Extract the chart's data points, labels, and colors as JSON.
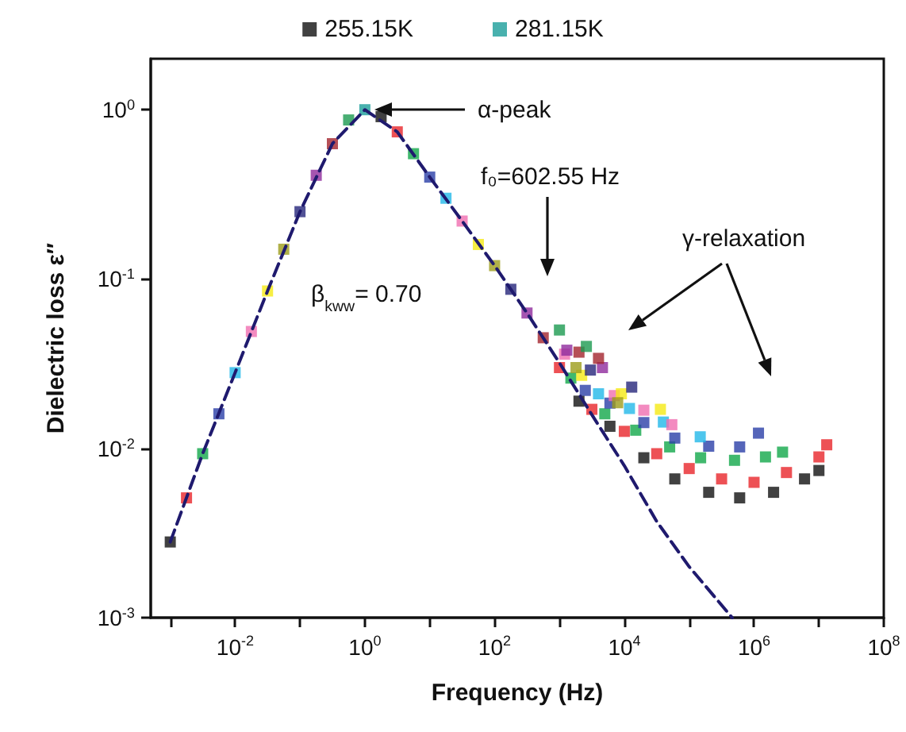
{
  "chart_data": {
    "type": "scatter",
    "xlabel": "Frequency (Hz)",
    "ylabel": "Dielectric loss ε″",
    "log": "xy",
    "legend": "top",
    "marker": "square",
    "xlim": [
      0.0005,
      100000000
    ],
    "xticks": [
      {
        "value": 0.001,
        "label": null
      },
      {
        "value": 0.01,
        "label": "10$^{-2}$"
      },
      {
        "value": 0.1,
        "label": null
      },
      {
        "value": 1,
        "label": "10$^{0}$"
      },
      {
        "value": 10,
        "label": null
      },
      {
        "value": 100,
        "label": "10$^{2}$"
      },
      {
        "value": 1000,
        "label": null
      },
      {
        "value": 10000,
        "label": "10$^{4}$"
      },
      {
        "value": 100000,
        "label": null
      },
      {
        "value": 1000000,
        "label": "10$^{6}$"
      },
      {
        "value": 10000000,
        "label": null
      },
      {
        "value": 100000000,
        "label": "10$^{8}$"
      }
    ],
    "ylim": [
      0.001,
      2
    ],
    "yticks": [
      {
        "value": 0.001,
        "label": "10$^{-3}$"
      },
      {
        "value": 0.01,
        "label": "10$^{-2}$"
      },
      {
        "value": 0.1,
        "label": "10$^{-1}$"
      },
      {
        "value": 1,
        "label": "10$^{0}$"
      }
    ],
    "annotations": [
      "α-peak",
      "f₀=602.55 Hz",
      "β$_{kww}$= 0.70",
      "γ-relaxation"
    ],
    "series": [
      {
        "name": "255.15K",
        "color": "#111111",
        "x": [
          0.001,
          1.78,
          2000,
          6000,
          20000,
          60000,
          200000,
          600000,
          2000000,
          6000000,
          10000000
        ],
        "values": [
          0.0028,
          0.91,
          0.019,
          0.0135,
          0.0088,
          0.0066,
          0.0055,
          0.0051,
          0.0055,
          0.0066,
          0.0074
        ]
      },
      {
        "color": "#e8262b",
        "x": [
          0.00178,
          3.16,
          1000,
          3160,
          10000,
          31600,
          100000,
          316000,
          1000000,
          3160000,
          10000000,
          13200000
        ],
        "values": [
          0.0051,
          0.74,
          0.03,
          0.017,
          0.0126,
          0.0093,
          0.0076,
          0.0066,
          0.0063,
          0.0072,
          0.0089,
          0.0105
        ]
      },
      {
        "color": "#11a84a",
        "x": [
          0.00316,
          5.62,
          1500,
          5000,
          15000,
          50000,
          150000,
          500000,
          1500000,
          2750000
        ],
        "values": [
          0.0093,
          0.55,
          0.026,
          0.016,
          0.0128,
          0.0102,
          0.0088,
          0.0085,
          0.0089,
          0.0095
        ]
      },
      {
        "color": "#2b3fa8",
        "x": [
          0.00562,
          10,
          2500,
          6000,
          20000,
          60000,
          200000,
          600000,
          1170000
        ],
        "values": [
          0.016,
          0.4,
          0.022,
          0.0185,
          0.0142,
          0.0115,
          0.0103,
          0.0102,
          0.0123
        ]
      },
      {
        "color": "#22b8e8",
        "x": [
          0.01,
          17.8,
          4000,
          12000,
          40000,
          148000
        ],
        "values": [
          0.028,
          0.3,
          0.021,
          0.0172,
          0.0143,
          0.0117
        ]
      },
      {
        "color": "#f06eb0",
        "x": [
          0.0178,
          31.6,
          1200,
          7000,
          20000,
          54000
        ],
        "values": [
          0.049,
          0.22,
          0.036,
          0.0205,
          0.0168,
          0.0138
        ]
      },
      {
        "color": "#f5ea14",
        "x": [
          0.0316,
          56.2,
          2200,
          9000,
          36000
        ],
        "values": [
          0.085,
          0.16,
          0.027,
          0.021,
          0.017
        ]
      },
      {
        "color": "#9c9c1c",
        "x": [
          0.0562,
          100,
          1800,
          7900
        ],
        "values": [
          0.15,
          0.12,
          0.03,
          0.0186
        ]
      },
      {
        "color": "#26257a",
        "x": [
          0.1,
          178,
          3000,
          13000
        ],
        "values": [
          0.25,
          0.087,
          0.029,
          0.023
        ]
      },
      {
        "color": "#8e2a9c",
        "x": [
          0.178,
          316,
          1300,
          4600
        ],
        "values": [
          0.41,
          0.063,
          0.038,
          0.03
        ]
      },
      {
        "color": "#a3242d",
        "x": [
          0.316,
          562,
          2000,
          4000
        ],
        "values": [
          0.63,
          0.045,
          0.037,
          0.034
        ]
      },
      {
        "color": "#1c9a50",
        "x": [
          0.562,
          1000,
          2600
        ],
        "values": [
          0.87,
          0.05,
          0.04
        ]
      },
      {
        "name": "281.15K",
        "color": "#1b9e9a",
        "x": [
          1
        ],
        "values": [
          1
        ]
      },
      {
        "type": "line",
        "color": "#1f1a6e",
        "line_style": "dashed",
        "marker": "none",
        "x": [
          0.001,
          0.00316,
          0.01,
          0.0316,
          0.1,
          0.316,
          1,
          3.16,
          10,
          31.6,
          100,
          316,
          1000,
          3160,
          10000,
          31600,
          100000,
          460000
        ],
        "values": [
          0.0028,
          0.0093,
          0.028,
          0.085,
          0.25,
          0.63,
          1,
          0.74,
          0.4,
          0.22,
          0.12,
          0.063,
          0.032,
          0.0158,
          0.0079,
          0.0037,
          0.002,
          0.001
        ]
      }
    ]
  }
}
